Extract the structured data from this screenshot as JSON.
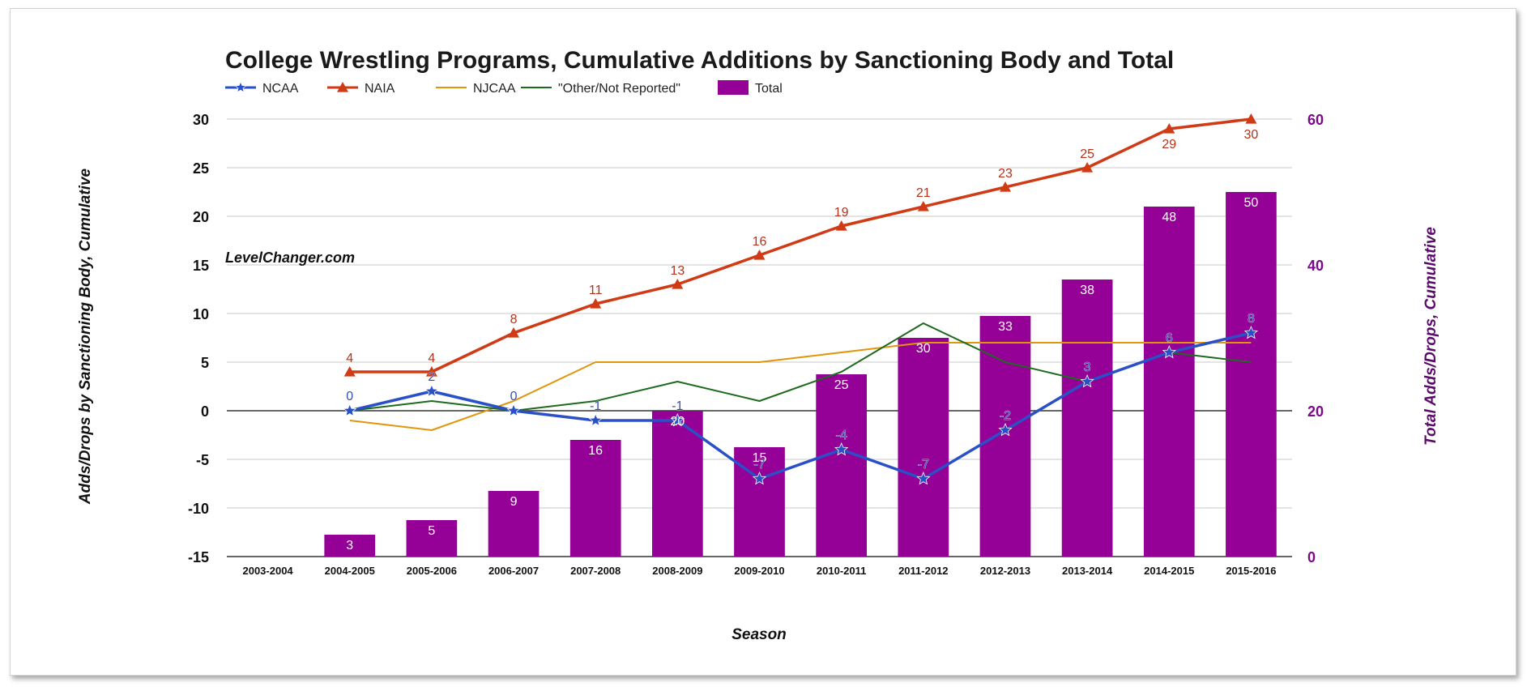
{
  "chart_data": {
    "type": "bar",
    "title": "College Wrestling Programs, Cumulative Additions by Sanctioning Body and Total",
    "watermark": "LevelChanger.com",
    "xlabel": "Season",
    "ylabel": "Adds/Drops by Sanctioning Body, Cumulative",
    "y2label": "Total Adds/Drops, Cumulative",
    "ylim": [
      -15,
      30
    ],
    "y2lim": [
      0,
      60
    ],
    "yticks": [
      30,
      25,
      20,
      15,
      10,
      5,
      0,
      -5,
      -10,
      -15
    ],
    "y2ticks": [
      60,
      40,
      20,
      0
    ],
    "categories": [
      "2003-2004",
      "2004-2005",
      "2005-2006",
      "2006-2007",
      "2007-2008",
      "2008-2009",
      "2009-2010",
      "2010-2011",
      "2011-2012",
      "2012-2013",
      "2013-2014",
      "2014-2015",
      "2015-2016"
    ],
    "series": [
      {
        "name": "NCAA",
        "kind": "line",
        "color": "#2a50c8",
        "marker": "star",
        "values": [
          null,
          0,
          2,
          0,
          -1,
          -1,
          -7,
          -4,
          -7,
          -2,
          3,
          6,
          8
        ],
        "labels": [
          "",
          "0",
          "2",
          "0",
          "-1",
          "-1",
          "-7",
          "-4",
          "-7",
          "-2",
          "3",
          "6",
          "8"
        ]
      },
      {
        "name": "NAIA",
        "kind": "line",
        "color": "#d03a14",
        "marker": "triangle",
        "values": [
          null,
          4,
          4,
          8,
          11,
          13,
          16,
          19,
          21,
          23,
          25,
          29,
          30
        ],
        "labels": [
          "",
          "4",
          "4",
          "8",
          "11",
          "13",
          "16",
          "19",
          "21",
          "23",
          "25",
          "29",
          "30"
        ]
      },
      {
        "name": "NJCAA",
        "kind": "line",
        "color": "#e0960c",
        "marker": "none",
        "values": [
          null,
          -1,
          -2,
          1,
          5,
          5,
          5,
          6,
          7,
          7,
          7,
          7,
          7
        ]
      },
      {
        "name": "\"Other/Not Reported\"",
        "kind": "line",
        "color": "#1e6a1e",
        "marker": "none",
        "values": [
          null,
          0,
          1,
          0,
          1,
          3,
          1,
          4,
          9,
          5,
          3,
          6,
          5
        ]
      },
      {
        "name": "Total",
        "kind": "bar",
        "axis": "right",
        "color": "#950096",
        "values": [
          null,
          3,
          5,
          9,
          16,
          20,
          15,
          25,
          30,
          33,
          38,
          48,
          50
        ],
        "labels": [
          "",
          "3",
          "5",
          "9",
          "16",
          "20",
          "15",
          "25",
          "30",
          "33",
          "38",
          "48",
          "50"
        ]
      }
    ],
    "legend": "top-left",
    "grid": true
  }
}
